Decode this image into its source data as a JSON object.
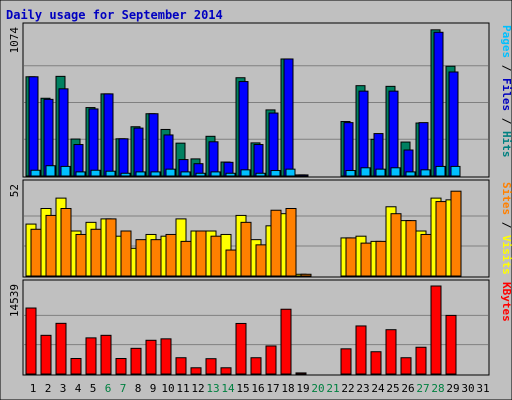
{
  "chart_data": {
    "type": "bar",
    "title": "Daily usage for September 2014",
    "categories": [
      "1",
      "2",
      "3",
      "4",
      "5",
      "6",
      "7",
      "8",
      "9",
      "10",
      "11",
      "12",
      "13",
      "14",
      "15",
      "16",
      "17",
      "18",
      "19",
      "20",
      "21",
      "22",
      "23",
      "24",
      "25",
      "26",
      "27",
      "28",
      "29",
      "30",
      "31"
    ],
    "weekend_days": [
      "6",
      "7",
      "13",
      "14",
      "20",
      "21",
      "27",
      "28"
    ],
    "panels": [
      {
        "name": "hits-files-pages",
        "ymax": 1074,
        "ymax_label": "1074",
        "side_label": [
          {
            "text": "Pages",
            "color": "#00c0ff"
          },
          {
            "text": " / ",
            "color": "#000000"
          },
          {
            "text": "Files",
            "color": "#0000c0"
          },
          {
            "text": " / ",
            "color": "#000000"
          },
          {
            "text": "Hits",
            "color": "#008080"
          }
        ],
        "series": [
          {
            "name": "Hits",
            "color": "#008060",
            "values": [
              725,
              568,
              728,
              270,
              500,
              600,
              272,
              360,
              455,
              340,
              240,
              125,
              290,
              102,
              718,
              242,
              483,
              855,
              8,
              0,
              0,
              398,
              660,
              268,
              655,
              248,
              387,
              1068,
              802,
              0,
              0
            ]
          },
          {
            "name": "Files",
            "color": "#0000ff",
            "values": [
              725,
              560,
              637,
              230,
              490,
              600,
              272,
              350,
              455,
              300,
              120,
              90,
              250,
              100,
              690,
              230,
              460,
              855,
              8,
              0,
              0,
              390,
              620,
              310,
              620,
              190,
              390,
              1050,
              760,
              0,
              0
            ]
          },
          {
            "name": "Pages",
            "color": "#00c0ff",
            "values": [
              42,
              75,
              70,
              30,
              42,
              35,
              20,
              30,
              30,
              50,
              30,
              20,
              30,
              20,
              45,
              20,
              40,
              50,
              0,
              0,
              0,
              40,
              60,
              50,
              60,
              30,
              45,
              70,
              70,
              0,
              0
            ]
          }
        ]
      },
      {
        "name": "visits-sites",
        "ymax": 52,
        "ymax_label": "52",
        "side_label": [
          {
            "text": "Sites",
            "color": "#ff8000"
          },
          {
            "text": " / ",
            "color": "#000000"
          },
          {
            "text": "Visits",
            "color": "#ffff00"
          }
        ],
        "series": [
          {
            "name": "Visits",
            "color": "#ffff00",
            "values": [
              30,
              39,
              45,
              26,
              31,
              33,
              23,
              16,
              24,
              23,
              33,
              26,
              26,
              24,
              35,
              21,
              29,
              36,
              1,
              0,
              0,
              22,
              23,
              20,
              40,
              32,
              26,
              45,
              44,
              0,
              0
            ]
          },
          {
            "name": "Sites",
            "color": "#ff8000",
            "values": [
              27,
              35,
              39,
              24,
              27,
              33,
              26,
              21,
              21,
              24,
              20,
              26,
              23,
              15,
              31,
              18,
              38,
              39,
              1,
              0,
              0,
              22,
              19,
              20,
              36,
              32,
              24,
              43,
              49,
              0,
              0
            ]
          }
        ]
      },
      {
        "name": "kbytes",
        "ymax": 14539,
        "ymax_label": "14539",
        "side_label": [
          {
            "text": "KBytes",
            "color": "#ff0000"
          }
        ],
        "series": [
          {
            "name": "KBytes",
            "color": "#ff0000",
            "values": [
              10900,
              6390,
              8370,
              2560,
              5970,
              6390,
              2560,
              4240,
              5570,
              5810,
              2690,
              1030,
              2530,
              1030,
              8350,
              2690,
              4630,
              10700,
              180,
              0,
              0,
              4160,
              7940,
              3680,
              7320,
              2690,
              4420,
              14539,
              9680,
              0,
              0
            ]
          }
        ]
      }
    ]
  }
}
